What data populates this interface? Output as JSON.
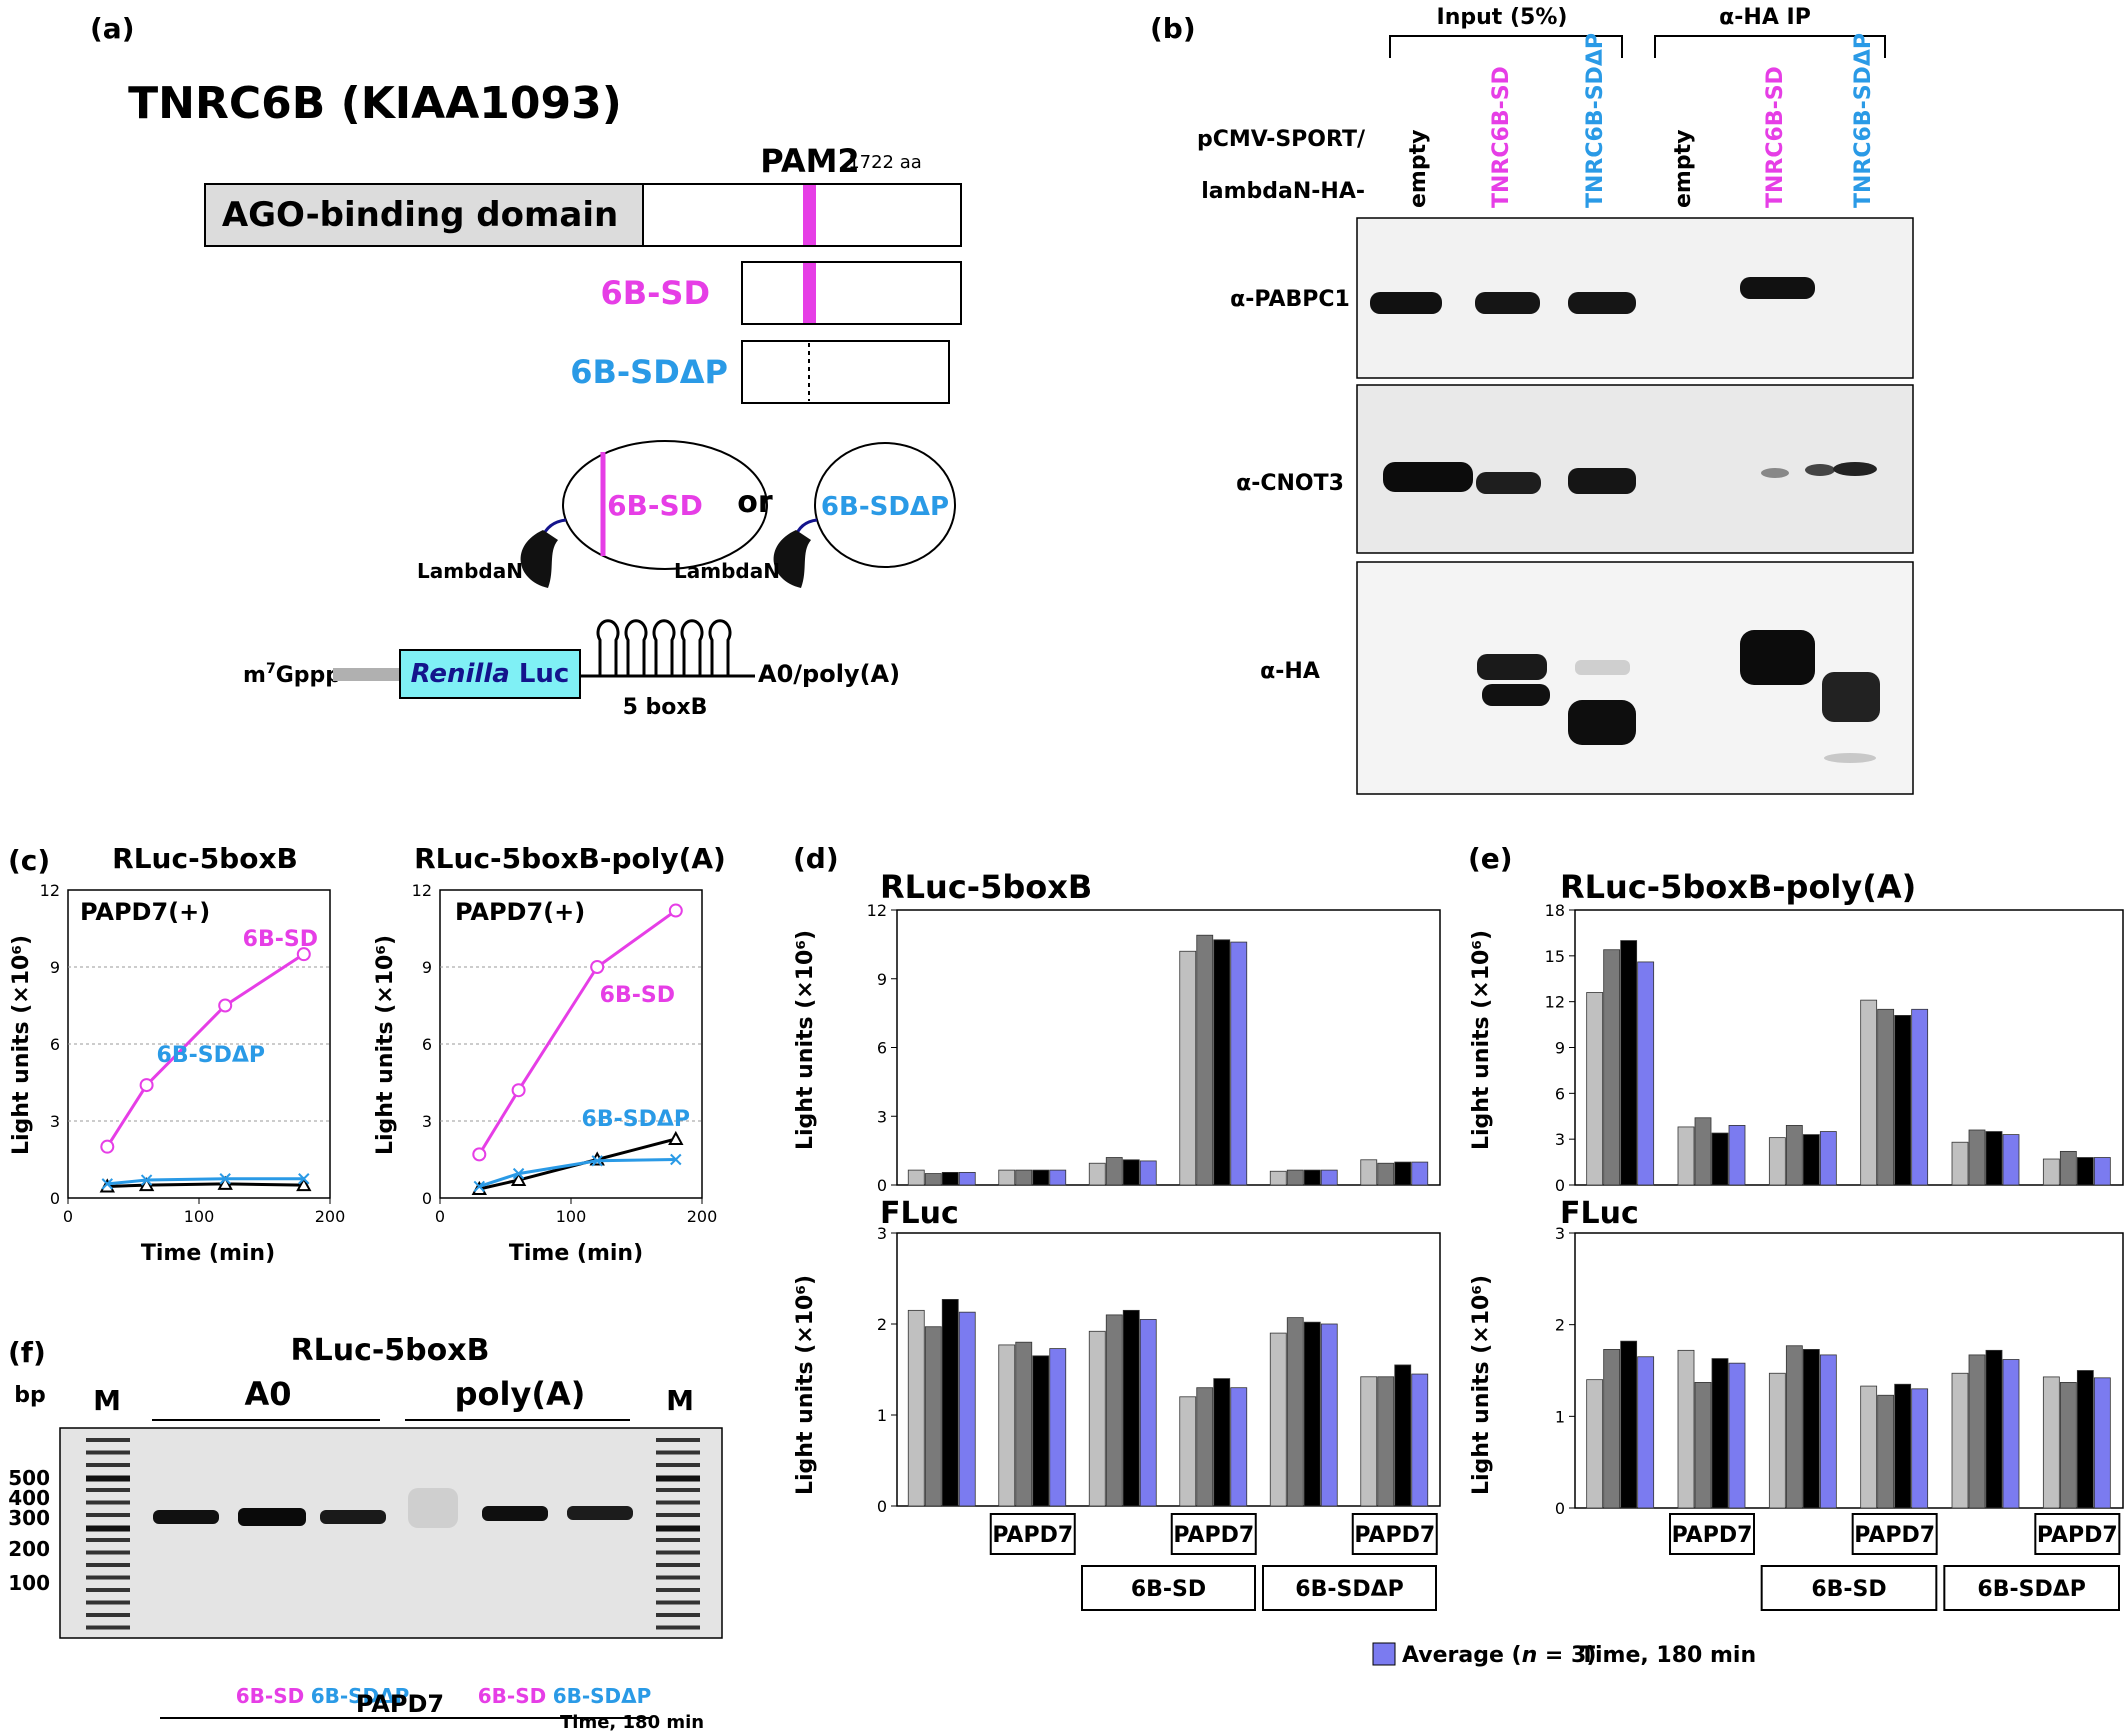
{
  "colors": {
    "magenta": "#e63ee6",
    "blue": "#2a9ae6",
    "cyan": "#7ff0f5",
    "navy": "#14148c",
    "gray_domain": "#dcdcdc",
    "avg": "#7b7bf0",
    "bar1": "#c0c0c0",
    "bar2": "#7a7a7a",
    "bar3": "#000000"
  },
  "panel_a": {
    "label": "(a)",
    "title": "TNRC6B (KIAA1093)",
    "pam2": "PAM2",
    "length": "1722 aa",
    "domain": "AGO-binding domain",
    "sd": "6B-SD",
    "sddp": "6B-SDΔP",
    "or": "or",
    "lambdan1": "LambdaN",
    "lambdan2": "LambdaN",
    "cap_m": "m",
    "cap_sup": "7",
    "cap_gppp": "Gppp",
    "renilla": "Renilla",
    "luc": " Luc",
    "boxb": "5 boxB",
    "tail": "A0/poly(A)"
  },
  "panel_b": {
    "label": "(b)",
    "group_input": "Input (5%)",
    "group_ip": "α-HA IP",
    "row_label1": "pCMV-SPORT/",
    "row_label2": "lambdaN-HA-",
    "lanes": [
      "empty",
      "TNRC6B-SD",
      "TNRC6B-SDΔP",
      "empty",
      "TNRC6B-SD",
      "TNRC6B-SDΔP"
    ],
    "blots": [
      "α-PABPC1",
      "α-CNOT3",
      "α-HA"
    ]
  },
  "panel_c": {
    "label": "(c)",
    "ylabel": "Light units (×10⁶)",
    "xlabel": "Time (min)",
    "yticks": [
      "0",
      "3",
      "6",
      "9",
      "12"
    ],
    "xticks": [
      "0",
      "100",
      "200"
    ],
    "plots": [
      {
        "title": "RLuc-5boxB",
        "tag": "PAPD7(+)",
        "sd_label": "6B-SD",
        "sddp_label": "6B-SDΔP"
      },
      {
        "title": "RLuc-5boxB-poly(A)",
        "tag": "PAPD7(+)",
        "sd_label": "6B-SD",
        "sddp_label": "6B-SDΔP"
      }
    ]
  },
  "panel_d": {
    "label": "(d)",
    "title": "RLuc-5boxB",
    "title2": "FLuc",
    "ylabel": "Light units (×10⁶)"
  },
  "panel_e": {
    "label": "(e)",
    "title": "RLuc-5boxB-poly(A)",
    "title2": "FLuc",
    "ylabel": "Light units (×10⁶)"
  },
  "bar_boxes": {
    "papd7": "PAPD7",
    "sd": "6B-SD",
    "sddp": "6B-SDΔP"
  },
  "legend": {
    "average": "Average (",
    "n": "n",
    "eq": " = 3)",
    "time": "Time, 180 min"
  },
  "panel_f": {
    "label": "(f)",
    "title": "RLuc-5boxB",
    "bp": "bp",
    "m_left": "M",
    "m_right": "M",
    "a0": "A0",
    "polya": "poly(A)",
    "bp_labels": [
      "500",
      "400",
      "300",
      "200",
      "100"
    ],
    "lane_sd1": "6B-SD",
    "lane_sddp1": "6B-SDΔP",
    "lane_sd2": "6B-SD",
    "lane_sddp2": "6B-SDΔP",
    "papd7": "PAPD7",
    "time": "Time, 180 min"
  },
  "chart_data": [
    {
      "type": "line",
      "title": "RLuc-5boxB",
      "xlabel": "Time (min)",
      "ylabel": "Light units (×10⁶)",
      "xlim": [
        0,
        200
      ],
      "ylim": [
        0,
        12
      ],
      "x": [
        30,
        60,
        120,
        180
      ],
      "series": [
        {
          "name": "6B-SD",
          "values": [
            2.0,
            4.4,
            7.5,
            9.5
          ]
        },
        {
          "name": "6B-SDΔP",
          "values": [
            0.55,
            0.7,
            0.75,
            0.75
          ]
        },
        {
          "name": "",
          "values": [
            0.45,
            0.5,
            0.55,
            0.5
          ]
        }
      ]
    },
    {
      "type": "line",
      "title": "RLuc-5boxB-poly(A)",
      "xlabel": "Time (min)",
      "ylabel": "Light units (×10⁶)",
      "xlim": [
        0,
        200
      ],
      "ylim": [
        0,
        12
      ],
      "x": [
        30,
        60,
        120,
        180
      ],
      "series": [
        {
          "name": "6B-SD",
          "values": [
            1.7,
            4.2,
            9.0,
            11.2
          ]
        },
        {
          "name": "6B-SDΔP",
          "values": [
            0.45,
            0.95,
            1.45,
            1.5
          ]
        },
        {
          "name": "",
          "values": [
            0.35,
            0.7,
            1.5,
            2.3
          ]
        }
      ]
    },
    {
      "type": "bar",
      "title": "RLuc-5boxB",
      "ylabel": "Light units (×10⁶)",
      "ylim": [
        0,
        12
      ],
      "yticks": [
        0,
        3,
        6,
        9,
        12
      ],
      "groups": [
        [
          0.65,
          0.5,
          0.55,
          0.55
        ],
        [
          0.65,
          0.65,
          0.65,
          0.65
        ],
        [
          0.95,
          1.2,
          1.1,
          1.05
        ],
        [
          10.2,
          10.9,
          10.7,
          10.6
        ],
        [
          0.6,
          0.65,
          0.65,
          0.65
        ],
        [
          1.1,
          0.95,
          1.0,
          1.0
        ]
      ]
    },
    {
      "type": "bar",
      "title": "FLuc",
      "ylabel": "Light units (×10⁶)",
      "ylim": [
        0,
        3
      ],
      "yticks": [
        0,
        1,
        2,
        3
      ],
      "groups": [
        [
          2.15,
          1.97,
          2.27,
          2.13
        ],
        [
          1.77,
          1.8,
          1.65,
          1.73
        ],
        [
          1.92,
          2.1,
          2.15,
          2.05
        ],
        [
          1.2,
          1.3,
          1.4,
          1.3
        ],
        [
          1.9,
          2.07,
          2.02,
          2.0
        ],
        [
          1.42,
          1.42,
          1.55,
          1.45
        ]
      ]
    },
    {
      "type": "bar",
      "title": "RLuc-5boxB-poly(A)",
      "ylabel": "Light units (×10⁶)",
      "ylim": [
        0,
        18
      ],
      "yticks": [
        0,
        3,
        6,
        9,
        12,
        15,
        18
      ],
      "groups": [
        [
          12.6,
          15.4,
          16.0,
          14.6
        ],
        [
          3.8,
          4.4,
          3.4,
          3.9
        ],
        [
          3.1,
          3.9,
          3.3,
          3.5
        ],
        [
          12.1,
          11.5,
          11.1,
          11.5
        ],
        [
          2.8,
          3.6,
          3.5,
          3.3
        ],
        [
          1.7,
          2.2,
          1.8,
          1.8
        ]
      ]
    },
    {
      "type": "bar",
      "title": "FLuc",
      "ylabel": "Light units (×10⁶)",
      "ylim": [
        0,
        3
      ],
      "yticks": [
        0,
        1,
        2,
        3
      ],
      "groups": [
        [
          1.4,
          1.73,
          1.82,
          1.65
        ],
        [
          1.72,
          1.37,
          1.63,
          1.58
        ],
        [
          1.47,
          1.77,
          1.73,
          1.67
        ],
        [
          1.33,
          1.23,
          1.35,
          1.3
        ],
        [
          1.47,
          1.67,
          1.72,
          1.62
        ],
        [
          1.43,
          1.37,
          1.5,
          1.42
        ]
      ]
    }
  ]
}
